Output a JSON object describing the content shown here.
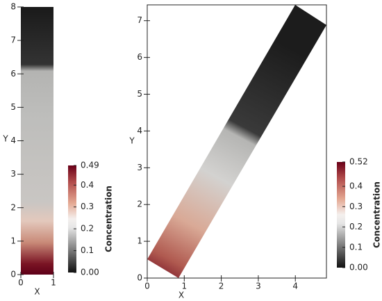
{
  "chart_data": [
    {
      "type": "field",
      "x_label": "X",
      "y_label": "Y",
      "xlim": [
        0,
        1
      ],
      "xticks": [
        0,
        1
      ],
      "ylim": [
        0,
        8
      ],
      "yticks": [
        0,
        1,
        2,
        3,
        4,
        5,
        6,
        7,
        8
      ],
      "colorbar": {
        "label": "Concentration",
        "range": [
          0,
          0.49
        ],
        "ticks": [
          {
            "value": 0,
            "label": "0.00"
          },
          0.1,
          0.2,
          0.3,
          0.4,
          {
            "value": 0.49,
            "label": "0.49"
          }
        ]
      }
    },
    {
      "type": "field",
      "x_label": "X",
      "y_label": "Y",
      "xlim": [
        0,
        4.84
      ],
      "xticks": [
        0,
        1,
        2,
        3,
        4
      ],
      "ylim": [
        0,
        7.43
      ],
      "yticks": [
        0,
        1,
        2,
        3,
        4,
        5,
        6,
        7
      ],
      "colorbar": {
        "label": "Concentration",
        "range": [
          0,
          0.52
        ],
        "ticks": [
          {
            "value": 0,
            "label": "0.00"
          },
          0.1,
          0.2,
          0.3,
          0.4,
          {
            "value": 0.52,
            "label": "0.52"
          }
        ]
      }
    }
  ]
}
